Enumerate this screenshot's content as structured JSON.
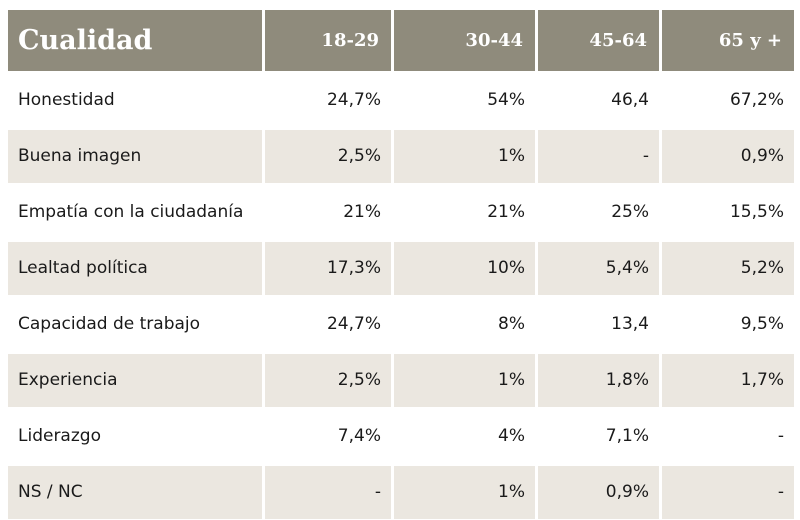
{
  "table": {
    "headers": [
      "Cualidad",
      "18-29",
      "30-44",
      "45-64",
      "65 y +"
    ],
    "rows": [
      {
        "label": "Honestidad",
        "values": [
          "24,7%",
          "54%",
          "46,4",
          "67,2%"
        ]
      },
      {
        "label": "Buena imagen",
        "values": [
          "2,5%",
          "1%",
          "-",
          "0,9%"
        ]
      },
      {
        "label": "Empatía con la ciudadanía",
        "values": [
          "21%",
          "21%",
          "25%",
          "15,5%"
        ]
      },
      {
        "label": "Lealtad política",
        "values": [
          "17,3%",
          "10%",
          "5,4%",
          "5,2%"
        ]
      },
      {
        "label": "Capacidad de trabajo",
        "values": [
          "24,7%",
          "8%",
          "13,4",
          "9,5%"
        ]
      },
      {
        "label": "Experiencia",
        "values": [
          "2,5%",
          "1%",
          "1,8%",
          "1,7%"
        ]
      },
      {
        "label": "Liderazgo",
        "values": [
          "7,4%",
          "4%",
          "7,1%",
          "-"
        ]
      },
      {
        "label": "NS / NC",
        "values": [
          "-",
          "1%",
          "0,9%",
          "-"
        ]
      }
    ]
  },
  "colors": {
    "header_bg": "#8f8b7c",
    "header_text": "#ffffff",
    "alt_row_bg": "#ebe7e0",
    "row_bg": "#ffffff"
  }
}
